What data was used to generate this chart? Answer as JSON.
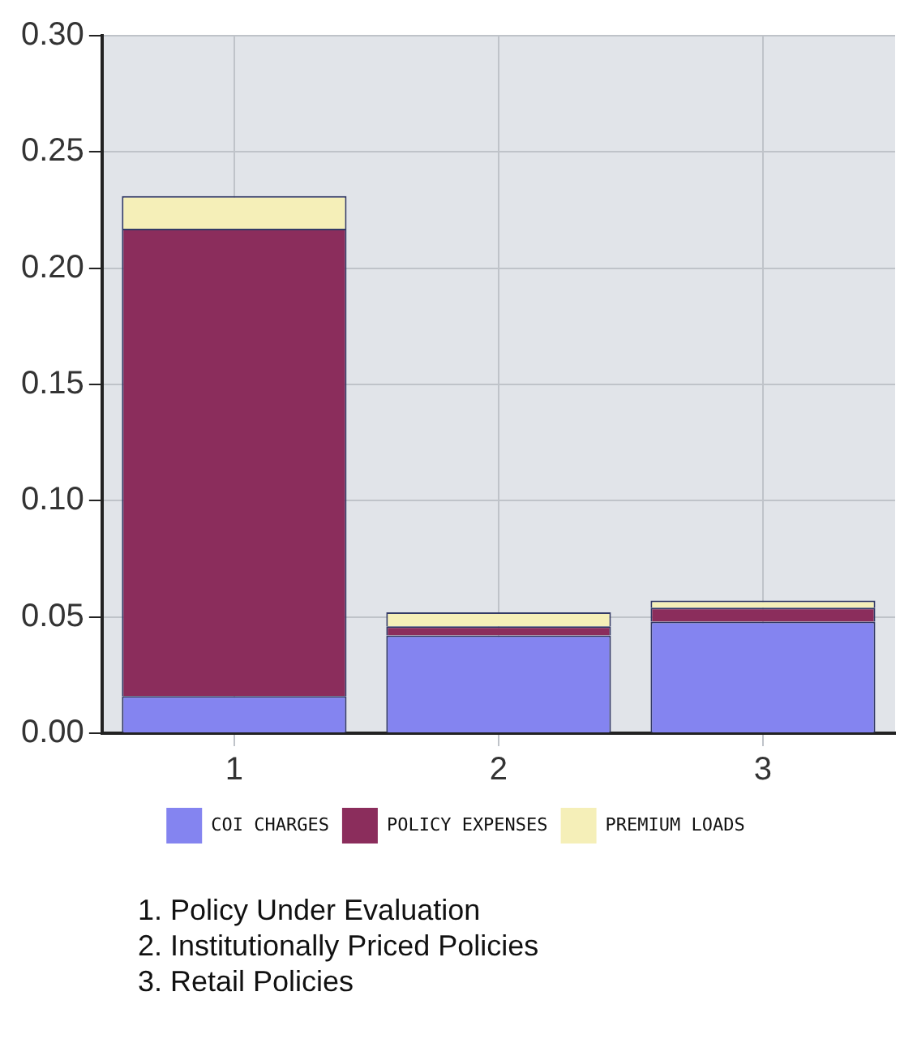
{
  "chart_data": {
    "type": "bar",
    "stacked": true,
    "categories": [
      "1",
      "2",
      "3"
    ],
    "series": [
      {
        "name": "COI CHARGES",
        "color": "#8484f0",
        "values": [
          0.016,
          0.042,
          0.048
        ]
      },
      {
        "name": "POLICY EXPENSES",
        "color": "#8b2d5c",
        "values": [
          0.201,
          0.004,
          0.006
        ]
      },
      {
        "name": "PREMIUM LOADS",
        "color": "#f5efb8",
        "values": [
          0.014,
          0.006,
          0.003
        ]
      }
    ],
    "ylim": [
      0,
      0.3
    ],
    "yticks": [
      {
        "value": 0,
        "label": "0.00"
      },
      {
        "value": 0.05,
        "label": "0.05"
      },
      {
        "value": 0.1,
        "label": "0.10"
      },
      {
        "value": 0.15,
        "label": "0.15"
      },
      {
        "value": 0.2,
        "label": "0.20"
      },
      {
        "value": 0.25,
        "label": "0.25"
      },
      {
        "value": 0.3,
        "label": "0.30"
      }
    ],
    "grid": true,
    "legend": "bottom",
    "annotations": [
      "1. Policy Under Evaluation",
      "2. Institutionally Priced Policies",
      "3. Retail Policies"
    ]
  }
}
